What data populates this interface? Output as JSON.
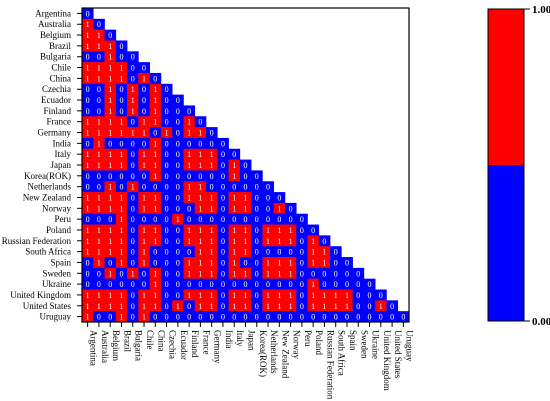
{
  "chart_data": {
    "type": "heatmap",
    "countries": [
      "Argentina",
      "Australia",
      "Belgium",
      "Brazil",
      "Bulgaria",
      "Chile",
      "China",
      "Czechia",
      "Ecuador",
      "Finland",
      "France",
      "Germany",
      "India",
      "Italy",
      "Japan",
      "Korea(ROK)",
      "Netherlands",
      "New Zealand",
      "Norway",
      "Peru",
      "Poland",
      "Russian Federation",
      "South Africa",
      "Spain",
      "Sweden",
      "Ukraine",
      "United Kingdom",
      "United States",
      "Uruguay"
    ],
    "matrix": [
      [
        0
      ],
      [
        1,
        0
      ],
      [
        1,
        1,
        0
      ],
      [
        1,
        1,
        1,
        0
      ],
      [
        0,
        0,
        1,
        0,
        0
      ],
      [
        1,
        1,
        1,
        1,
        0,
        0
      ],
      [
        1,
        1,
        1,
        1,
        0,
        1,
        0
      ],
      [
        0,
        0,
        1,
        0,
        1,
        0,
        1,
        0
      ],
      [
        0,
        0,
        1,
        0,
        1,
        0,
        1,
        0,
        0
      ],
      [
        0,
        0,
        1,
        0,
        1,
        0,
        1,
        0,
        0,
        0
      ],
      [
        1,
        1,
        1,
        1,
        0,
        1,
        1,
        0,
        0,
        1,
        0
      ],
      [
        1,
        1,
        1,
        1,
        1,
        1,
        0,
        1,
        0,
        1,
        1,
        0
      ],
      [
        0,
        1,
        0,
        0,
        0,
        0,
        1,
        0,
        0,
        0,
        0,
        0,
        0
      ],
      [
        1,
        1,
        1,
        1,
        0,
        1,
        1,
        0,
        0,
        1,
        1,
        1,
        0,
        0
      ],
      [
        1,
        1,
        1,
        1,
        0,
        1,
        1,
        0,
        0,
        1,
        1,
        1,
        0,
        1,
        0
      ],
      [
        0,
        0,
        0,
        0,
        0,
        0,
        1,
        0,
        0,
        0,
        0,
        0,
        0,
        1,
        0,
        0
      ],
      [
        0,
        0,
        1,
        0,
        1,
        0,
        0,
        0,
        0,
        1,
        1,
        0,
        0,
        0,
        0,
        0,
        0
      ],
      [
        1,
        1,
        1,
        1,
        0,
        1,
        1,
        0,
        0,
        1,
        1,
        1,
        0,
        1,
        1,
        0,
        0,
        0
      ],
      [
        1,
        1,
        1,
        1,
        0,
        1,
        1,
        0,
        0,
        0,
        1,
        1,
        0,
        1,
        1,
        0,
        0,
        1,
        0
      ],
      [
        0,
        0,
        0,
        1,
        0,
        0,
        0,
        0,
        1,
        0,
        0,
        0,
        0,
        0,
        0,
        0,
        0,
        0,
        0,
        0
      ],
      [
        1,
        1,
        1,
        1,
        0,
        1,
        1,
        0,
        0,
        1,
        1,
        1,
        0,
        1,
        1,
        0,
        1,
        1,
        1,
        0,
        0
      ],
      [
        1,
        1,
        1,
        1,
        0,
        1,
        1,
        0,
        0,
        1,
        1,
        1,
        0,
        1,
        1,
        0,
        1,
        1,
        1,
        0,
        1,
        0
      ],
      [
        1,
        1,
        1,
        1,
        0,
        1,
        0,
        0,
        0,
        0,
        1,
        1,
        0,
        1,
        1,
        0,
        0,
        0,
        0,
        0,
        1,
        1,
        0
      ],
      [
        0,
        1,
        0,
        1,
        0,
        1,
        0,
        0,
        0,
        1,
        1,
        1,
        0,
        1,
        0,
        0,
        1,
        1,
        1,
        0,
        1,
        1,
        0,
        0
      ],
      [
        0,
        0,
        1,
        0,
        1,
        0,
        1,
        0,
        0,
        1,
        1,
        1,
        0,
        1,
        1,
        0,
        1,
        1,
        1,
        0,
        0,
        0,
        0,
        0,
        0
      ],
      [
        0,
        0,
        0,
        0,
        0,
        0,
        1,
        0,
        0,
        0,
        0,
        0,
        0,
        0,
        0,
        0,
        0,
        0,
        0,
        0,
        1,
        0,
        0,
        0,
        0,
        0
      ],
      [
        1,
        1,
        1,
        1,
        0,
        1,
        1,
        0,
        0,
        1,
        1,
        1,
        0,
        1,
        1,
        0,
        1,
        1,
        1,
        0,
        1,
        1,
        1,
        1,
        0,
        0,
        0
      ],
      [
        1,
        1,
        1,
        1,
        0,
        1,
        1,
        0,
        1,
        0,
        1,
        1,
        0,
        1,
        1,
        0,
        1,
        1,
        1,
        0,
        1,
        1,
        1,
        1,
        0,
        0,
        1,
        0
      ],
      [
        1,
        0,
        0,
        1,
        0,
        1,
        0,
        0,
        0,
        0,
        0,
        0,
        0,
        0,
        0,
        0,
        0,
        0,
        0,
        0,
        0,
        0,
        0,
        0,
        0,
        0,
        0,
        0,
        0
      ]
    ],
    "colorbar": {
      "max_label": "1.000",
      "min_label": "0.000",
      "high_color": "#ff0000",
      "low_color": "#0000ff"
    },
    "cell_text_color": "#ffffff",
    "xlabel": "",
    "ylabel": "",
    "title": ""
  }
}
